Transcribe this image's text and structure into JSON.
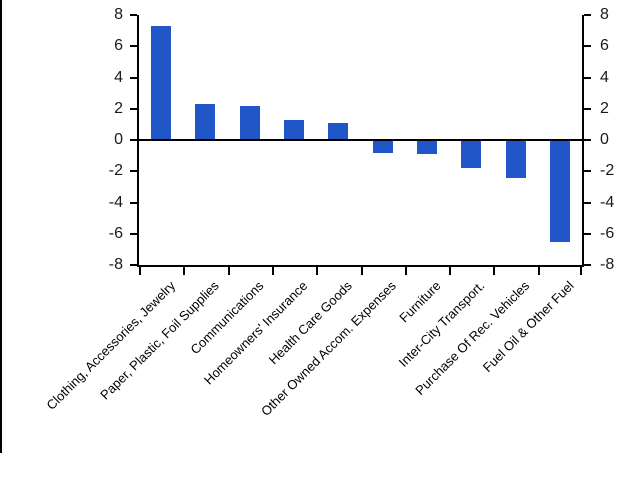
{
  "chart_data": {
    "type": "bar",
    "title": "",
    "xlabel": "",
    "ylabel": "",
    "categories": [
      "Clothing, Accessories, Jewelry",
      "Paper, Plastic, Foil Supplies",
      "Communications",
      "Homeowners' Insurance",
      "Health Care Goods",
      "Other Owned Accom. Expenses",
      "Furniture",
      "Inter-City Transport.",
      "Purchase Of Rec. Vehicles",
      "Fuel Oil & Other Fuel"
    ],
    "values": [
      7.3,
      2.3,
      2.2,
      1.3,
      1.1,
      -0.8,
      -0.9,
      -1.8,
      -2.4,
      -6.5
    ],
    "ylim": [
      -8,
      8
    ],
    "yticks": [
      8,
      6,
      4,
      2,
      0,
      -2,
      -4,
      -6,
      -8
    ],
    "dual_y_axis": true,
    "grid": false,
    "legend": "none",
    "bar_color": "#2156c8",
    "axis_color": "#000000"
  }
}
